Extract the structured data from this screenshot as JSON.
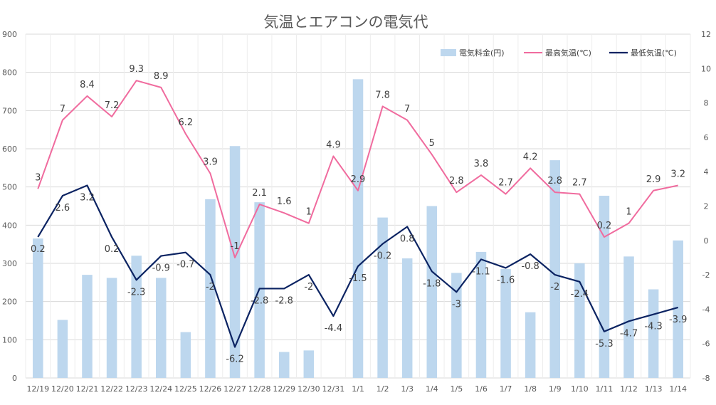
{
  "chart_data": {
    "type": "bar+line",
    "title": "気温とエアコンの電気代",
    "categories": [
      "12/19",
      "12/20",
      "12/21",
      "12/22",
      "12/23",
      "12/24",
      "12/25",
      "12/26",
      "12/27",
      "12/28",
      "12/29",
      "12/30",
      "12/31",
      "1/1",
      "1/2",
      "1/3",
      "1/4",
      "1/5",
      "1/6",
      "1/7",
      "1/8",
      "1/9",
      "1/10",
      "1/11",
      "1/12",
      "1/13",
      "1/14"
    ],
    "series": [
      {
        "name": "電気料金(円)",
        "type": "bar",
        "axis": "left",
        "color": "#BDD7EE",
        "values": [
          365,
          152,
          270,
          262,
          320,
          262,
          120,
          468,
          607,
          460,
          68,
          72,
          0,
          782,
          420,
          313,
          450,
          275,
          330,
          285,
          172,
          570,
          300,
          477,
          318,
          232,
          360
        ]
      },
      {
        "name": "最高気温(℃)",
        "type": "line",
        "axis": "right",
        "color": "#F06B9E",
        "values": [
          3,
          7,
          8.4,
          7.2,
          9.3,
          8.9,
          6.2,
          3.9,
          -1,
          2.1,
          1.6,
          1,
          4.9,
          2.9,
          7.8,
          7,
          5,
          2.8,
          3.8,
          2.7,
          4.2,
          2.8,
          2.7,
          0.2,
          1,
          2.9,
          3.2
        ],
        "labels": [
          "3",
          "7",
          "8.4",
          "7.2",
          "9.3",
          "8.9",
          "6.2",
          "3.9",
          "-1",
          "2.1",
          "1.6",
          "1",
          "4.9",
          "2.9",
          "7.8",
          "7",
          "5",
          "2.8",
          "3.8",
          "2.7",
          "4.2",
          "2.8",
          "2.7",
          "0.2",
          "1",
          "2.9",
          "3.2"
        ]
      },
      {
        "name": "最低気温(℃)",
        "type": "line",
        "axis": "right",
        "color": "#0B2362",
        "values": [
          0.2,
          2.6,
          3.2,
          0.2,
          -2.3,
          -0.9,
          -0.7,
          -2,
          -6.2,
          -2.8,
          -2.8,
          -2,
          -4.4,
          -1.5,
          -0.2,
          0.8,
          -1.8,
          -3,
          -1.1,
          -1.6,
          -0.8,
          -2,
          -2.4,
          -5.3,
          -4.7,
          -4.3,
          -3.9
        ],
        "labels": [
          "0.2",
          "2.6",
          "3.2",
          "0.2",
          "-2.3",
          "-0.9",
          "-0.7",
          "-2",
          "-6.2",
          "-2.8",
          "-2.8",
          "-2",
          "-4.4",
          "-1.5",
          "-0.2",
          "0.8",
          "-1.8",
          "-3",
          "-1.1",
          "-1.6",
          "-0.8",
          "-2",
          "-2.4",
          "-5.3",
          "-4.7",
          "-4.3",
          "-3.9"
        ]
      }
    ],
    "y_left": {
      "min": 0,
      "max": 900,
      "step": 100,
      "ticks": [
        "0",
        "100",
        "200",
        "300",
        "400",
        "500",
        "600",
        "700",
        "800",
        "900"
      ]
    },
    "y_right": {
      "min": -8,
      "max": 12,
      "step": 2,
      "ticks": [
        "-8",
        "-6",
        "-4",
        "-2",
        "0",
        "2",
        "4",
        "6",
        "8",
        "10",
        "12"
      ]
    },
    "grid": true,
    "legend_position": "top-right"
  }
}
